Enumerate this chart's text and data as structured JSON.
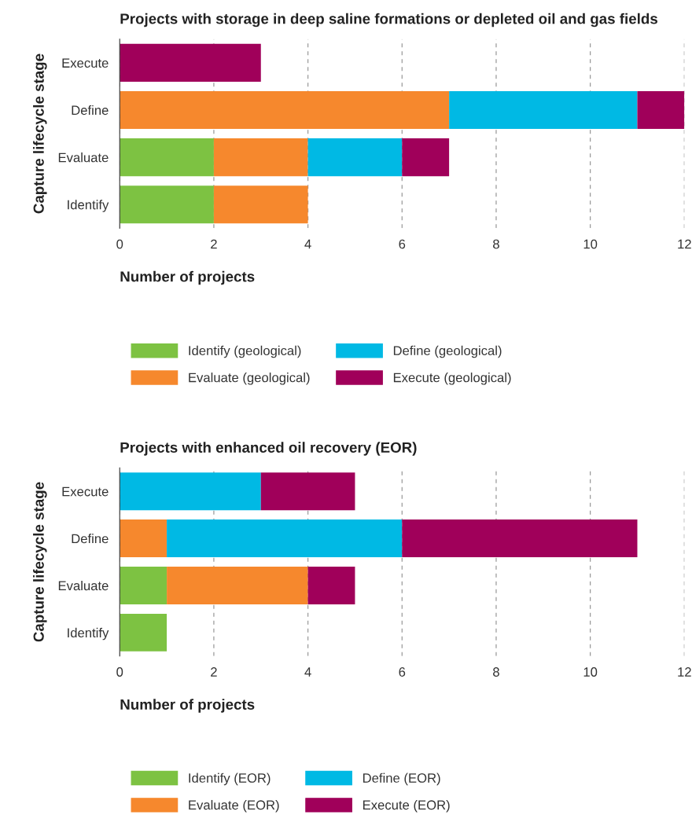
{
  "chart_data": [
    {
      "type": "bar",
      "orientation": "horizontal",
      "stacked": true,
      "title": "Projects with storage in deep saline formations or depleted oil and gas fields",
      "xlabel": "Number of projects",
      "ylabel": "Capture lifecycle stage",
      "categories": [
        "Execute",
        "Define",
        "Evaluate",
        "Identify"
      ],
      "series": [
        {
          "name": "Identify (geological)",
          "color": "#7dc242",
          "values": [
            null,
            null,
            2,
            2
          ]
        },
        {
          "name": "Evaluate (geological)",
          "color": "#f6882d",
          "values": [
            null,
            7,
            2,
            2
          ]
        },
        {
          "name": "Define (geological)",
          "color": "#00b9e4",
          "values": [
            null,
            4,
            2,
            null
          ]
        },
        {
          "name": "Execute (geological)",
          "color": "#a0005a",
          "values": [
            3,
            1,
            1,
            null
          ]
        }
      ],
      "xlim": [
        0,
        12
      ],
      "xticks": [
        0,
        2,
        4,
        6,
        8,
        10,
        12
      ],
      "grid": "x",
      "legend": "bottom"
    },
    {
      "type": "bar",
      "orientation": "horizontal",
      "stacked": true,
      "title": "Projects with enhanced oil recovery (EOR)",
      "xlabel": "Number of projects",
      "ylabel": "Capture lifecycle stage",
      "categories": [
        "Execute",
        "Define",
        "Evaluate",
        "Identify"
      ],
      "series": [
        {
          "name": "Identify (EOR)",
          "color": "#7dc242",
          "values": [
            null,
            null,
            1,
            1
          ]
        },
        {
          "name": "Evaluate (EOR)",
          "color": "#f6882d",
          "values": [
            null,
            1,
            3,
            null
          ]
        },
        {
          "name": "Define (EOR)",
          "color": "#00b9e4",
          "values": [
            3,
            5,
            null,
            null
          ]
        },
        {
          "name": "Execute (EOR)",
          "color": "#a0005a",
          "values": [
            2,
            5,
            1,
            null
          ]
        }
      ],
      "xlim": [
        0,
        12
      ],
      "xticks": [
        0,
        2,
        4,
        6,
        8,
        10,
        12
      ],
      "grid": "x",
      "legend": "bottom"
    }
  ]
}
